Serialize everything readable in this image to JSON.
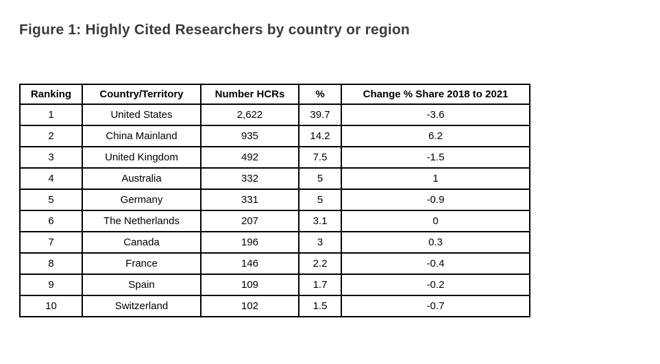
{
  "figure": {
    "title": "Figure 1: Highly Cited Researchers by country or region"
  },
  "table": {
    "columns": [
      "Ranking",
      "Country/Territory",
      "Number HCRs",
      "%",
      "Change % Share 2018 to 2021"
    ],
    "column_keys": [
      "ranking",
      "country-territory",
      "number-hcrs",
      "percent-share",
      "change-share-2018-2021"
    ],
    "rows": [
      [
        "1",
        "United States",
        "2,622",
        "39.7",
        "-3.6"
      ],
      [
        "2",
        "China Mainland",
        "935",
        "14.2",
        "6.2"
      ],
      [
        "3",
        "United Kingdom",
        "492",
        "7.5",
        "-1.5"
      ],
      [
        "4",
        "Australia",
        "332",
        "5",
        "1"
      ],
      [
        "5",
        "Germany",
        "331",
        "5",
        "-0.9"
      ],
      [
        "6",
        "The Netherlands",
        "207",
        "3.1",
        "0"
      ],
      [
        "7",
        "Canada",
        "196",
        "3",
        "0.3"
      ],
      [
        "8",
        "France",
        "146",
        "2.2",
        "-0.4"
      ],
      [
        "9",
        "Spain",
        "109",
        "1.7",
        "-0.2"
      ],
      [
        "10",
        "Switzerland",
        "102",
        "1.5",
        "-0.7"
      ]
    ]
  },
  "colors": {
    "background": "#ffffff",
    "title_text": "#3b3b3b",
    "table_border": "#000000",
    "table_text": "#000000"
  }
}
